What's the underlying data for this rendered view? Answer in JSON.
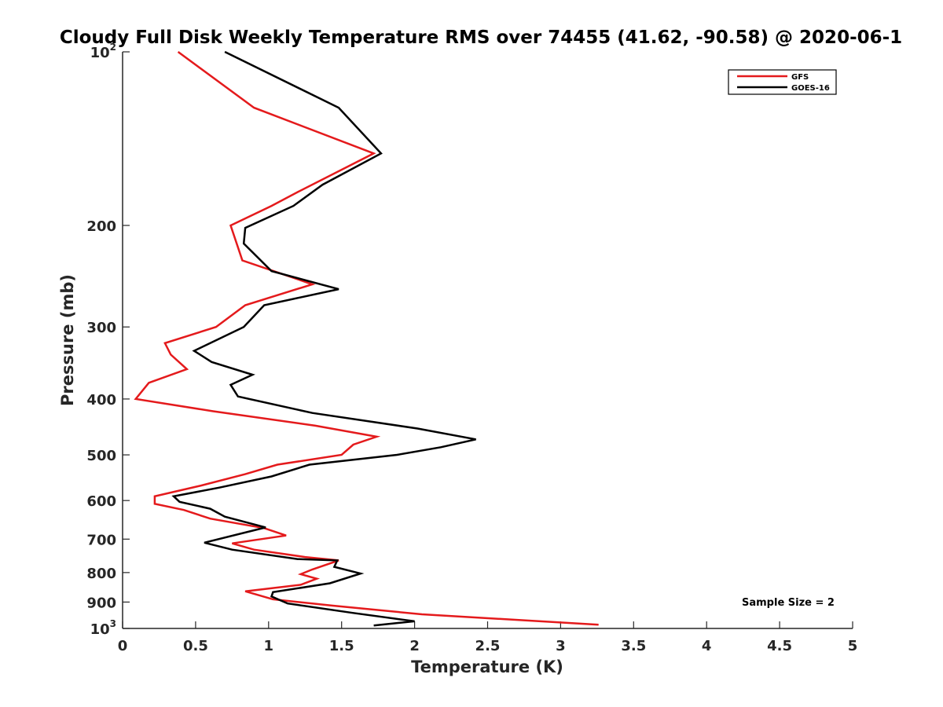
{
  "chart_data": {
    "type": "line",
    "title": "Cloudy Full Disk Weekly Temperature RMS over 74455 (41.62, -90.58) @ 2020-06-1",
    "xlabel": "Temperature (K)",
    "ylabel": "Pressure (mb)",
    "xlim": [
      0,
      5
    ],
    "ylim": [
      100,
      1000
    ],
    "y_scale": "log",
    "y_reversed": true,
    "grid": false,
    "legend_position": "top-right",
    "x_ticks": [
      "0",
      "0.5",
      "1",
      "1.5",
      "2",
      "2.5",
      "3",
      "3.5",
      "4",
      "4.5",
      "5"
    ],
    "y_ticks": [
      {
        "value": 100,
        "label": "10",
        "sup": "2"
      },
      {
        "value": 200,
        "label": "200",
        "sup": ""
      },
      {
        "value": 300,
        "label": "300",
        "sup": ""
      },
      {
        "value": 400,
        "label": "400",
        "sup": ""
      },
      {
        "value": 500,
        "label": "500",
        "sup": ""
      },
      {
        "value": 600,
        "label": "600",
        "sup": ""
      },
      {
        "value": 700,
        "label": "700",
        "sup": ""
      },
      {
        "value": 800,
        "label": "800",
        "sup": ""
      },
      {
        "value": 900,
        "label": "900",
        "sup": ""
      },
      {
        "value": 1000,
        "label": "10",
        "sup": "3"
      }
    ],
    "annotation": "Sample Size = 2",
    "series": [
      {
        "name": "GFS",
        "color": "#e41a1c",
        "points": [
          [
            0.38,
            100
          ],
          [
            0.9,
            125
          ],
          [
            1.72,
            150
          ],
          [
            1.2,
            175
          ],
          [
            1.02,
            185
          ],
          [
            0.74,
            200
          ],
          [
            0.82,
            230
          ],
          [
            1.3,
            253
          ],
          [
            0.84,
            275
          ],
          [
            0.64,
            300
          ],
          [
            0.29,
            320
          ],
          [
            0.33,
            335
          ],
          [
            0.44,
            355
          ],
          [
            0.18,
            375
          ],
          [
            0.09,
            400
          ],
          [
            0.62,
            420
          ],
          [
            1.32,
            445
          ],
          [
            1.74,
            465
          ],
          [
            1.58,
            480
          ],
          [
            1.5,
            500
          ],
          [
            1.06,
            520
          ],
          [
            0.84,
            540
          ],
          [
            0.54,
            565
          ],
          [
            0.22,
            590
          ],
          [
            0.22,
            608
          ],
          [
            0.42,
            623
          ],
          [
            0.6,
            645
          ],
          [
            0.97,
            670
          ],
          [
            1.12,
            690
          ],
          [
            0.75,
            712
          ],
          [
            0.9,
            730
          ],
          [
            1.25,
            752
          ],
          [
            1.48,
            762
          ],
          [
            1.3,
            790
          ],
          [
            1.22,
            805
          ],
          [
            1.33,
            820
          ],
          [
            1.22,
            840
          ],
          [
            0.84,
            862
          ],
          [
            1.03,
            890
          ],
          [
            1.44,
            913
          ],
          [
            2.05,
            945
          ],
          [
            3.26,
            985
          ]
        ]
      },
      {
        "name": "GOES-16",
        "color": "#000000",
        "points": [
          [
            0.7,
            100
          ],
          [
            1.48,
            125
          ],
          [
            1.77,
            150
          ],
          [
            1.37,
            170
          ],
          [
            1.17,
            185
          ],
          [
            0.84,
            202
          ],
          [
            0.83,
            215
          ],
          [
            1.02,
            240
          ],
          [
            1.48,
            258
          ],
          [
            0.97,
            275
          ],
          [
            0.83,
            300
          ],
          [
            0.49,
            330
          ],
          [
            0.61,
            345
          ],
          [
            0.89,
            363
          ],
          [
            0.74,
            378
          ],
          [
            0.79,
            396
          ],
          [
            1.3,
            423
          ],
          [
            2.02,
            450
          ],
          [
            2.42,
            470
          ],
          [
            2.18,
            485
          ],
          [
            1.88,
            500
          ],
          [
            1.28,
            520
          ],
          [
            1.02,
            545
          ],
          [
            0.66,
            570
          ],
          [
            0.35,
            590
          ],
          [
            0.39,
            603
          ],
          [
            0.6,
            620
          ],
          [
            0.7,
            640
          ],
          [
            0.98,
            668
          ],
          [
            0.56,
            710
          ],
          [
            0.75,
            730
          ],
          [
            1.2,
            758
          ],
          [
            1.47,
            762
          ],
          [
            1.45,
            782
          ],
          [
            1.63,
            803
          ],
          [
            1.42,
            835
          ],
          [
            1.03,
            865
          ],
          [
            1.02,
            880
          ],
          [
            1.13,
            905
          ],
          [
            1.58,
            940
          ],
          [
            2.0,
            972
          ],
          [
            1.72,
            988
          ]
        ]
      }
    ]
  }
}
